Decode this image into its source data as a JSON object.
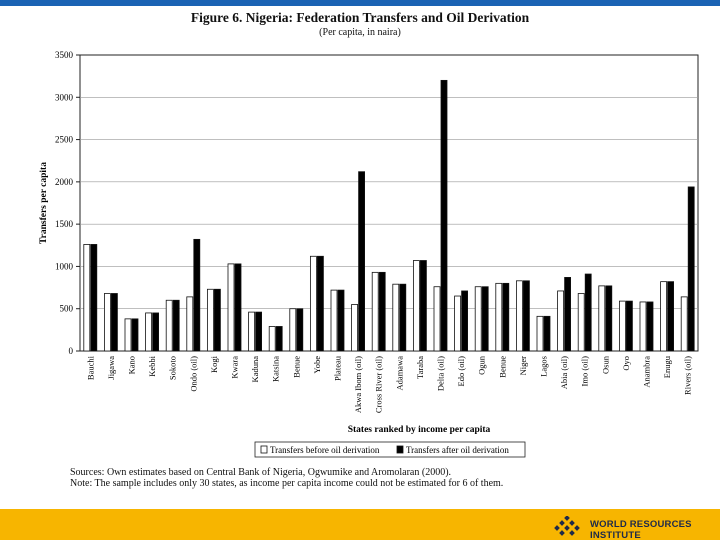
{
  "chart_data": {
    "type": "bar",
    "title": "Figure 6. Nigeria: Federation Transfers and Oil Derivation",
    "subtitle": "(Per capita, in naira)",
    "ylabel": "Transfers per capita",
    "xlabel": "States ranked by income per capita",
    "ylim": [
      0,
      3500
    ],
    "yticks": [
      0,
      500,
      1000,
      1500,
      2000,
      2500,
      3000,
      3500
    ],
    "grid": true,
    "legend_position": "bottom-right",
    "categories": [
      "Bauchi",
      "Jigawa",
      "Kano",
      "Kebbi",
      "Sokoto",
      "Ondo (oil)",
      "Kogi",
      "Kwara",
      "Kaduna",
      "Katsina",
      "Benue",
      "Yobe",
      "Plateau",
      "Akwa Ibom (oil)",
      "Cross River (oil)",
      "Adamawa",
      "Taraba",
      "Delta (oil)",
      "Edo (oil)",
      "Ogun",
      "Benue",
      "Niger",
      "Lagos",
      "Abia (oil)",
      "Imo (oil)",
      "Osun",
      "Oyo",
      "Anambra",
      "Enugu",
      "Rivers (oil)"
    ],
    "series": [
      {
        "name": "Transfers before oil derivation",
        "color": "#ffffff",
        "values": [
          1260,
          680,
          380,
          450,
          600,
          640,
          730,
          1030,
          460,
          290,
          500,
          1120,
          720,
          550,
          930,
          790,
          1070,
          760,
          650,
          760,
          800,
          830,
          410,
          710,
          680,
          770,
          590,
          580,
          820,
          640
        ]
      },
      {
        "name": "Transfers after oil derivation",
        "color": "#000000",
        "values": [
          1260,
          680,
          380,
          450,
          600,
          1320,
          730,
          1030,
          460,
          290,
          500,
          1120,
          720,
          2120,
          930,
          790,
          1070,
          3200,
          710,
          760,
          800,
          830,
          410,
          870,
          910,
          770,
          590,
          580,
          820,
          1940
        ]
      }
    ]
  },
  "notes": {
    "sources": "Sources: Own estimates based on Central Bank of Nigeria, Ogwumike and Aromolaran (2000).",
    "note": "Note: The sample includes only 30 states, as income per capita income could not be estimated for 6 of them."
  },
  "footer": {
    "org_name": "WORLD RESOURCES INSTITUTE",
    "bar_color": "#f7b500",
    "top_bar_color": "#1a63b4"
  }
}
